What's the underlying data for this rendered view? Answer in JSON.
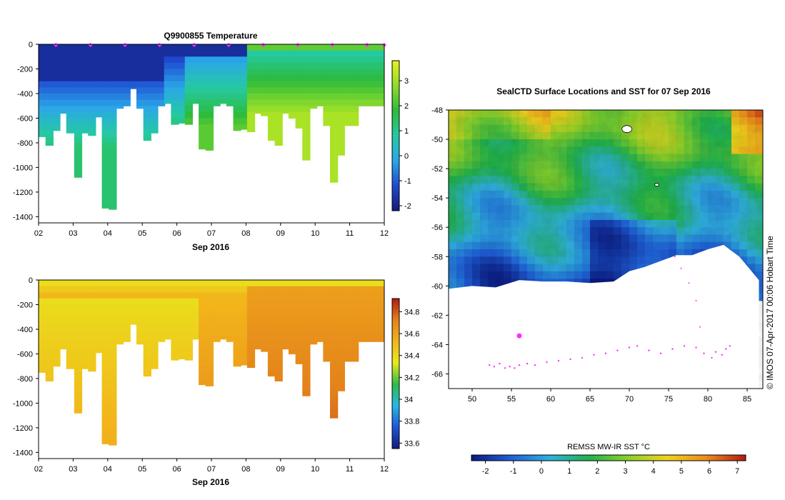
{
  "colors": {
    "temperature_scale": [
      "#151a7a",
      "#1f4bd1",
      "#2aa7e8",
      "#25c9a3",
      "#2dbb3c",
      "#8fdc2a",
      "#e8f01c"
    ],
    "salinity_scale": [
      "#151a7a",
      "#1f55d8",
      "#28b7e6",
      "#2fbb48",
      "#e8ea1c",
      "#f2b41b",
      "#e4821b",
      "#b11a14"
    ],
    "sst_scale": [
      "#0b1a80",
      "#1f5fd8",
      "#2fb0e0",
      "#21b34a",
      "#8ad12a",
      "#f0d21c",
      "#ef8a1b",
      "#b01a12"
    ],
    "track": "#ff2bff",
    "land_ice": "#ffffff"
  },
  "chart_data": [
    {
      "type": "heatmap",
      "title": "Q9900855  Temperature",
      "variable": "temperature",
      "xlabel": "Sep 2016",
      "ylabel": "",
      "x_ticks": [
        "02",
        "03",
        "04",
        "05",
        "06",
        "07",
        "08",
        "09",
        "10",
        "11",
        "12"
      ],
      "xlim": [
        2,
        12
      ],
      "y_ticks": [
        "0",
        "-200",
        "-400",
        "-600",
        "-800",
        "-1000",
        "-1200",
        "-1400"
      ],
      "ylim": [
        -1450,
        0
      ],
      "colorbar": {
        "ticks": [
          "3",
          "2",
          "1",
          "0",
          "-1",
          "-2"
        ],
        "range": [
          -2.2,
          3.8
        ]
      },
      "profile_days": [
        2.02,
        2.22,
        2.42,
        2.62,
        2.82,
        3.05,
        3.25,
        3.45,
        3.65,
        3.85,
        4.05,
        4.25,
        4.45,
        4.65,
        4.85,
        5.05,
        5.25,
        5.45,
        5.65,
        5.85,
        6.05,
        6.25,
        6.45,
        6.65,
        6.85,
        7.05,
        7.25,
        7.45,
        7.65,
        7.85,
        8.05,
        8.25,
        8.45,
        8.65,
        8.85,
        9.05,
        9.25,
        9.45,
        9.65,
        9.85,
        10.05,
        10.25,
        10.45,
        10.65,
        10.85,
        11.05,
        11.25,
        11.45,
        11.65,
        11.85,
        12.02
      ],
      "profile_max_depth": [
        -750,
        -820,
        -700,
        -560,
        -720,
        -1080,
        -720,
        -740,
        -590,
        -1330,
        -1340,
        -520,
        -500,
        -360,
        -520,
        -780,
        -720,
        -500,
        -480,
        -650,
        -640,
        -650,
        -480,
        -850,
        -860,
        -500,
        -480,
        -500,
        -700,
        -690,
        -710,
        -560,
        -580,
        -780,
        -820,
        -560,
        -600,
        -680,
        -940,
        -520,
        -500,
        -660,
        -1120,
        -900,
        -660,
        -660,
        -500,
        -500,
        -500,
        -500,
        -500
      ],
      "surface_marker_days": [
        2.5,
        3.5,
        4.5,
        5.5,
        6.5,
        7.5,
        8.5,
        9.5,
        10.5,
        11.5,
        12.0
      ]
    },
    {
      "type": "heatmap",
      "title": "",
      "variable": "salinity",
      "xlabel": "Sep 2016",
      "ylabel": "",
      "x_ticks": [
        "02",
        "03",
        "04",
        "05",
        "06",
        "07",
        "08",
        "09",
        "10",
        "11",
        "12"
      ],
      "xlim": [
        2,
        12
      ],
      "y_ticks": [
        "0",
        "-200",
        "-400",
        "-600",
        "-800",
        "-1000",
        "-1200",
        "-1400"
      ],
      "ylim": [
        -1450,
        0
      ],
      "colorbar": {
        "ticks": [
          "34.8",
          "34.6",
          "34.4",
          "34.2",
          "34",
          "33.8",
          "33.6"
        ],
        "range": [
          33.55,
          34.92
        ]
      }
    },
    {
      "type": "heatmap",
      "title": "SealCTD Surface Locations and SST for 07 Sep 2016",
      "variable": "sst",
      "x_ticks": [
        "50",
        "55",
        "60",
        "65",
        "70",
        "75",
        "80",
        "85"
      ],
      "xlim": [
        47,
        87
      ],
      "y_ticks": [
        "-48",
        "-50",
        "-52",
        "-54",
        "-56",
        "-58",
        "-60",
        "-62",
        "-64",
        "-66"
      ],
      "ylim": [
        -67,
        -48
      ],
      "colorbar": {
        "label": "REMSS MW-IR SST °C",
        "ticks": [
          "-2",
          "-1",
          "0",
          "1",
          "2",
          "3",
          "4",
          "5",
          "6",
          "7"
        ],
        "range": [
          -2.5,
          7.3
        ]
      },
      "credit": "© IMOS 07-Apr-2017 00:06 Hobart Time",
      "track": {
        "lon": [
          52.2,
          52.8,
          53.5,
          54.2,
          54.8,
          55.4,
          56.0,
          57.0,
          58.0,
          59.5,
          61.0,
          62.5,
          64.0,
          65.5,
          67.0,
          68.5,
          70.0,
          71.0,
          72.5,
          74.0,
          75.5,
          77.0,
          78.5,
          79.5,
          80.5,
          81.0,
          81.8,
          82.3,
          82.8
        ],
        "lat": [
          -65.4,
          -65.5,
          -65.3,
          -65.6,
          -65.5,
          -65.6,
          -65.4,
          -65.3,
          -65.4,
          -65.2,
          -65.1,
          -65.0,
          -64.9,
          -64.7,
          -64.6,
          -64.4,
          -64.2,
          -64.1,
          -64.4,
          -64.6,
          -64.3,
          -64.1,
          -64.2,
          -64.6,
          -64.9,
          -64.5,
          -64.7,
          -64.3,
          -64.1
        ],
        "north_branch_lon": [
          79.5,
          79.0,
          78.5,
          77.6,
          76.6,
          75.8
        ],
        "north_branch_lat": [
          -64.6,
          -62.8,
          -61.0,
          -59.8,
          -58.8,
          -58.0
        ],
        "latest": [
          56.0,
          -63.4
        ]
      },
      "land_outline_lon": [
        47,
        50,
        53,
        56,
        59,
        62,
        65,
        68,
        70,
        72,
        74,
        76,
        78,
        80,
        82,
        84,
        86.5,
        86.5,
        47
      ],
      "land_outline_lat": [
        -60.2,
        -60.0,
        -60.1,
        -59.6,
        -59.7,
        -59.7,
        -59.8,
        -59.7,
        -59.0,
        -58.7,
        -58.3,
        -57.9,
        -57.9,
        -57.5,
        -57.2,
        -58.0,
        -59.6,
        -67,
        -67
      ]
    }
  ]
}
